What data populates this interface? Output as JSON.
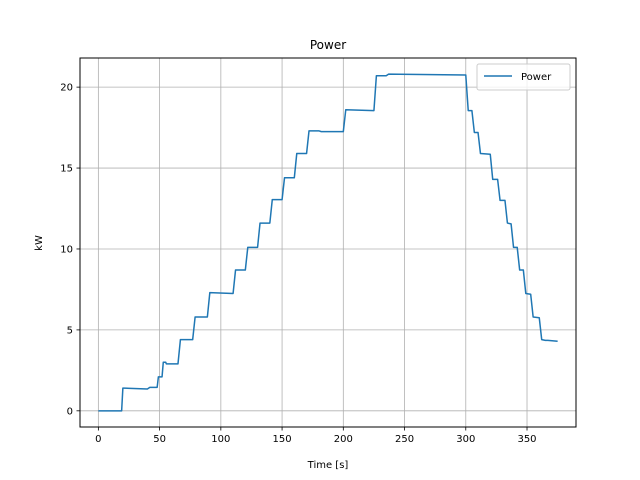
{
  "chart_data": {
    "type": "line",
    "title": "Power",
    "xlabel": "Time [s]",
    "ylabel": "kW",
    "xlim": [
      -15,
      390
    ],
    "ylim": [
      -1,
      21.8
    ],
    "xticks": [
      0,
      50,
      100,
      150,
      200,
      250,
      300,
      350
    ],
    "yticks": [
      0,
      5,
      10,
      15,
      20
    ],
    "grid": true,
    "legend_position": "top-right",
    "colors": {
      "series": "#1f77b4",
      "grid": "#b0b0b0"
    },
    "series": [
      {
        "name": "Power",
        "x": [
          0,
          19,
          20,
          21,
          40,
          42,
          48,
          49,
          52,
          53,
          55,
          55.5,
          65,
          67,
          77,
          79,
          89,
          91,
          110,
          112,
          120,
          122,
          130,
          132,
          140,
          142,
          150,
          152,
          160,
          162,
          170,
          172,
          180,
          182,
          190,
          200,
          202,
          225,
          227,
          235,
          237,
          300,
          302,
          305,
          307,
          310,
          312,
          320,
          322,
          326,
          328,
          332,
          334,
          337,
          339,
          342,
          344,
          347,
          349,
          353,
          355,
          360,
          362,
          365,
          367,
          375
        ],
        "y": [
          0,
          0,
          1.4,
          1.4,
          1.35,
          1.45,
          1.45,
          2.1,
          2.1,
          3.0,
          3.0,
          2.9,
          2.9,
          4.4,
          4.4,
          5.8,
          5.8,
          7.3,
          7.25,
          8.7,
          8.7,
          10.1,
          10.1,
          11.6,
          11.6,
          13.05,
          13.05,
          14.4,
          14.4,
          15.9,
          15.9,
          17.3,
          17.3,
          17.25,
          17.25,
          17.25,
          18.6,
          18.55,
          20.7,
          20.7,
          20.8,
          20.75,
          18.55,
          18.55,
          17.2,
          17.2,
          15.9,
          15.85,
          14.3,
          14.3,
          13.0,
          13.0,
          11.6,
          11.55,
          10.1,
          10.1,
          8.7,
          8.7,
          7.25,
          7.2,
          5.8,
          5.75,
          4.4,
          4.35,
          4.35,
          4.3
        ]
      }
    ]
  }
}
